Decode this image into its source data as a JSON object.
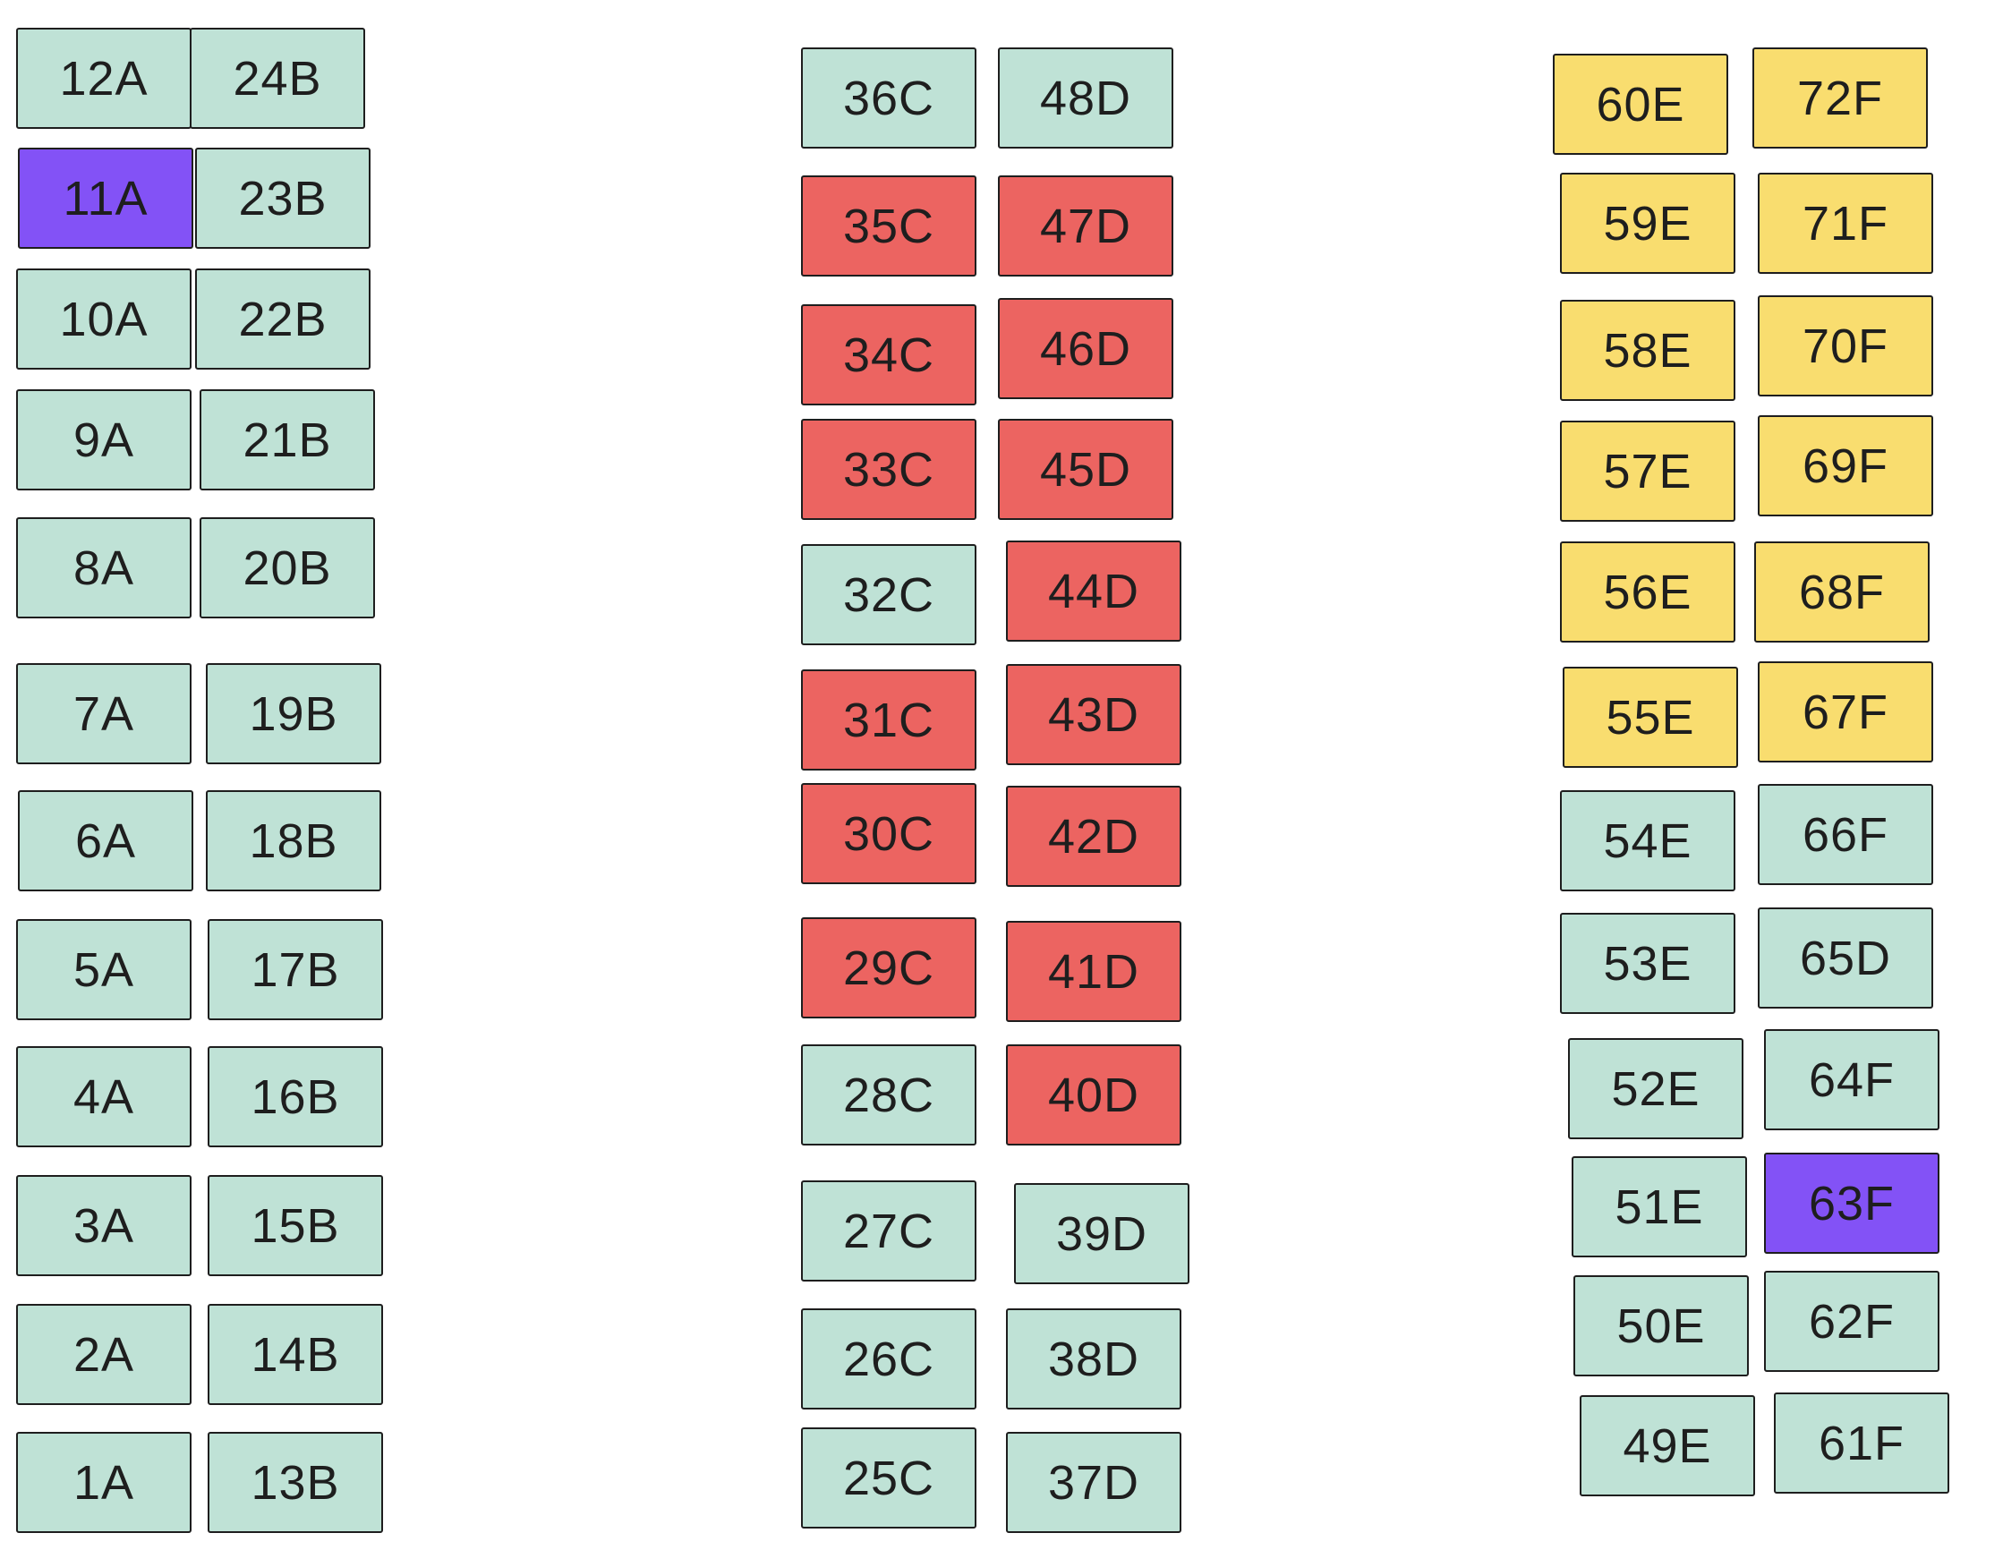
{
  "colors": {
    "available": "#bfe2d6",
    "reserved": "#ec6461",
    "premium": "#f9dd6f",
    "selected": "#8352f6",
    "border": "#1e1e1e",
    "text": "#1e1e1e"
  },
  "sections": [
    {
      "name": "section-left",
      "seats": [
        {
          "label": "12A",
          "status": "available"
        },
        {
          "label": "24B",
          "status": "available"
        },
        {
          "label": "11A",
          "status": "selected"
        },
        {
          "label": "23B",
          "status": "available"
        },
        {
          "label": "10A",
          "status": "available"
        },
        {
          "label": "22B",
          "status": "available"
        },
        {
          "label": "9A",
          "status": "available"
        },
        {
          "label": "21B",
          "status": "available"
        },
        {
          "label": "8A",
          "status": "available"
        },
        {
          "label": "20B",
          "status": "available"
        },
        {
          "label": "7A",
          "status": "available"
        },
        {
          "label": "19B",
          "status": "available"
        },
        {
          "label": "6A",
          "status": "available"
        },
        {
          "label": "18B",
          "status": "available"
        },
        {
          "label": "5A",
          "status": "available"
        },
        {
          "label": "17B",
          "status": "available"
        },
        {
          "label": "4A",
          "status": "available"
        },
        {
          "label": "16B",
          "status": "available"
        },
        {
          "label": "3A",
          "status": "available"
        },
        {
          "label": "15B",
          "status": "available"
        },
        {
          "label": "2A",
          "status": "available"
        },
        {
          "label": "14B",
          "status": "available"
        },
        {
          "label": "1A",
          "status": "available"
        },
        {
          "label": "13B",
          "status": "available"
        }
      ]
    },
    {
      "name": "section-center",
      "seats": [
        {
          "label": "36C",
          "status": "available"
        },
        {
          "label": "48D",
          "status": "available"
        },
        {
          "label": "35C",
          "status": "reserved"
        },
        {
          "label": "47D",
          "status": "reserved"
        },
        {
          "label": "34C",
          "status": "reserved"
        },
        {
          "label": "46D",
          "status": "reserved"
        },
        {
          "label": "33C",
          "status": "reserved"
        },
        {
          "label": "45D",
          "status": "reserved"
        },
        {
          "label": "32C",
          "status": "available"
        },
        {
          "label": "44D",
          "status": "reserved"
        },
        {
          "label": "31C",
          "status": "reserved"
        },
        {
          "label": "43D",
          "status": "reserved"
        },
        {
          "label": "30C",
          "status": "reserved"
        },
        {
          "label": "42D",
          "status": "reserved"
        },
        {
          "label": "29C",
          "status": "reserved"
        },
        {
          "label": "41D",
          "status": "reserved"
        },
        {
          "label": "28C",
          "status": "available"
        },
        {
          "label": "40D",
          "status": "reserved"
        },
        {
          "label": "27C",
          "status": "available"
        },
        {
          "label": "39D",
          "status": "available"
        },
        {
          "label": "26C",
          "status": "available"
        },
        {
          "label": "38D",
          "status": "available"
        },
        {
          "label": "25C",
          "status": "available"
        },
        {
          "label": "37D",
          "status": "available"
        }
      ]
    },
    {
      "name": "section-right",
      "seats": [
        {
          "label": "60E",
          "status": "premium"
        },
        {
          "label": "72F",
          "status": "premium"
        },
        {
          "label": "59E",
          "status": "premium"
        },
        {
          "label": "71F",
          "status": "premium"
        },
        {
          "label": "58E",
          "status": "premium"
        },
        {
          "label": "70F",
          "status": "premium"
        },
        {
          "label": "57E",
          "status": "premium"
        },
        {
          "label": "69F",
          "status": "premium"
        },
        {
          "label": "56E",
          "status": "premium"
        },
        {
          "label": "68F",
          "status": "premium"
        },
        {
          "label": "55E",
          "status": "premium"
        },
        {
          "label": "67F",
          "status": "premium"
        },
        {
          "label": "54E",
          "status": "available"
        },
        {
          "label": "66F",
          "status": "available"
        },
        {
          "label": "53E",
          "status": "available"
        },
        {
          "label": "65D",
          "status": "available"
        },
        {
          "label": "52E",
          "status": "available"
        },
        {
          "label": "64F",
          "status": "available"
        },
        {
          "label": "51E",
          "status": "available"
        },
        {
          "label": "63F",
          "status": "selected"
        },
        {
          "label": "50E",
          "status": "available"
        },
        {
          "label": "62F",
          "status": "available"
        },
        {
          "label": "49E",
          "status": "available"
        },
        {
          "label": "61F",
          "status": "available"
        }
      ]
    }
  ]
}
